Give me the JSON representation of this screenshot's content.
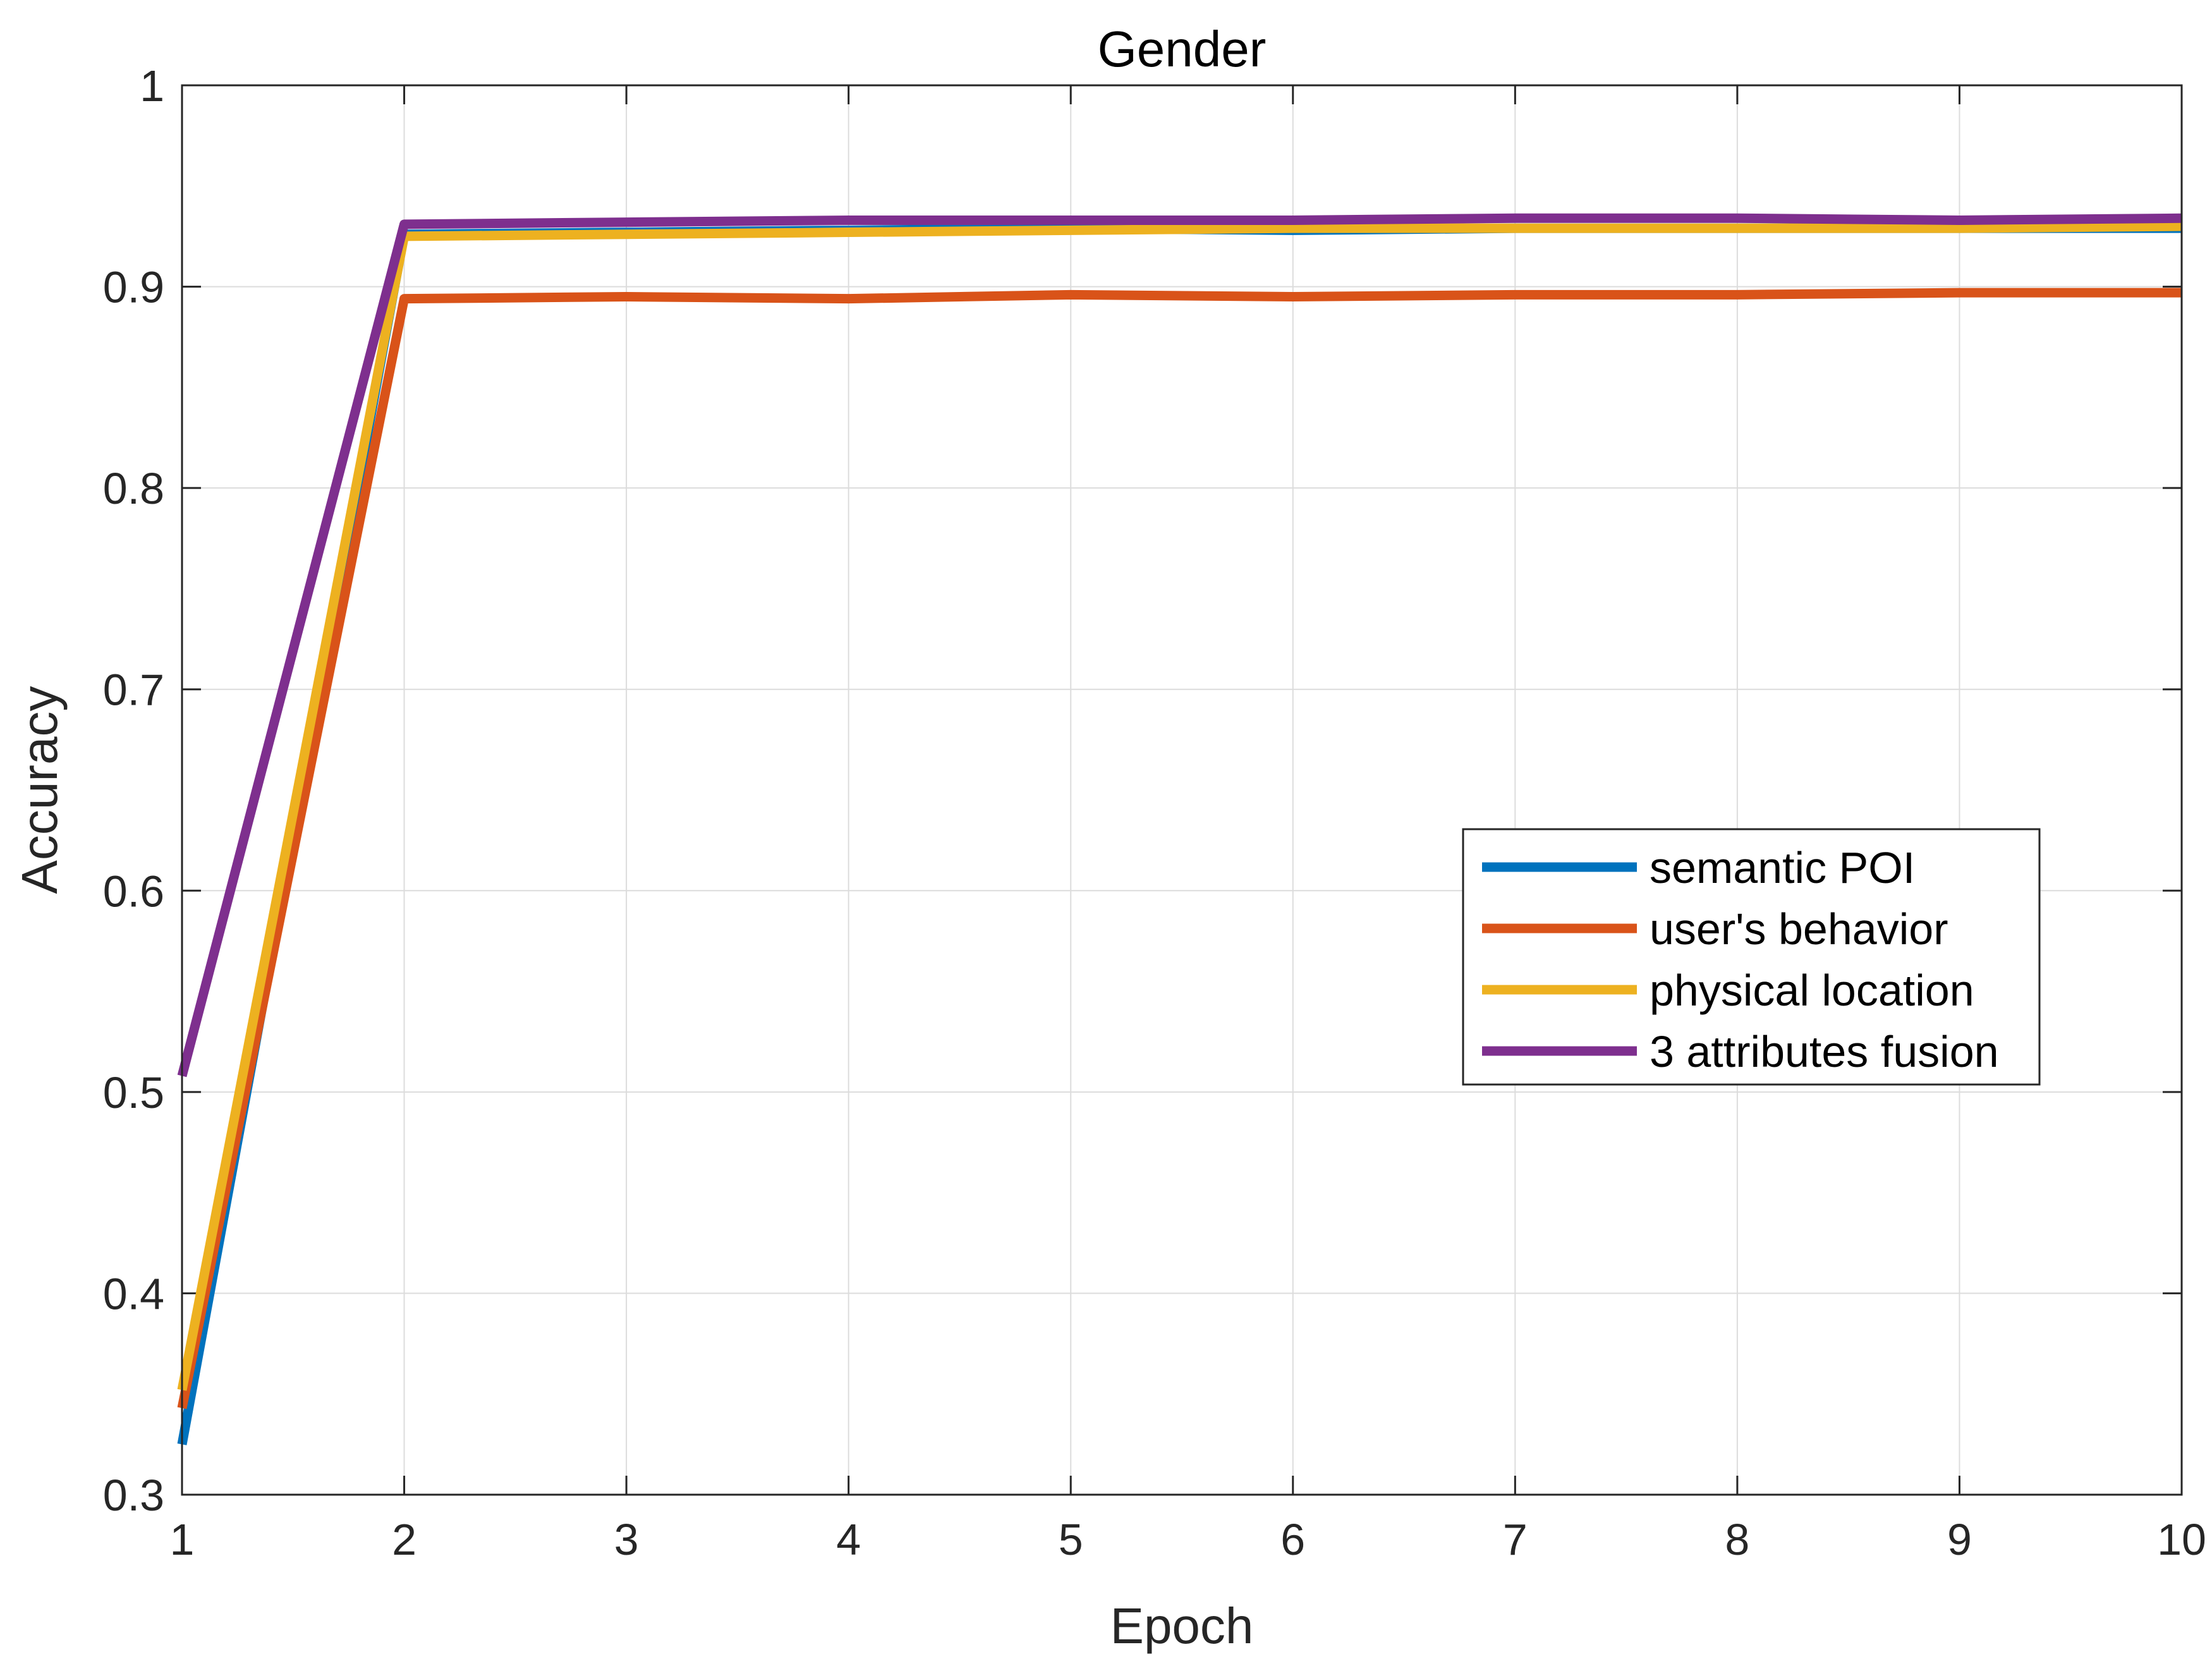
{
  "chart_data": {
    "type": "line",
    "title": "Gender",
    "xlabel": "Epoch",
    "ylabel": "Accuracy",
    "xlim": [
      1,
      10
    ],
    "ylim": [
      0.3,
      1
    ],
    "xticks": [
      "1",
      "2",
      "3",
      "4",
      "5",
      "6",
      "7",
      "8",
      "9",
      "10"
    ],
    "yticks": [
      "0.3",
      "0.4",
      "0.5",
      "0.6",
      "0.7",
      "0.8",
      "0.9",
      "1"
    ],
    "grid": true,
    "legend_position": "right",
    "x": [
      1,
      2,
      3,
      4,
      5,
      6,
      7,
      8,
      9,
      10
    ],
    "series": [
      {
        "name": "semantic POI",
        "color": "#0072BD",
        "values": [
          0.325,
          0.926,
          0.927,
          0.928,
          0.929,
          0.928,
          0.929,
          0.929,
          0.929,
          0.929
        ]
      },
      {
        "name": "user's behavior",
        "color": "#D95319",
        "values": [
          0.343,
          0.894,
          0.895,
          0.894,
          0.896,
          0.895,
          0.896,
          0.896,
          0.897,
          0.897
        ]
      },
      {
        "name": "physical location",
        "color": "#EDB120",
        "values": [
          0.352,
          0.925,
          0.926,
          0.927,
          0.928,
          0.929,
          0.929,
          0.929,
          0.929,
          0.93
        ]
      },
      {
        "name": "3 attributes fusion",
        "color": "#7E2F8E",
        "values": [
          0.508,
          0.931,
          0.932,
          0.933,
          0.933,
          0.933,
          0.934,
          0.934,
          0.933,
          0.934
        ]
      }
    ]
  }
}
